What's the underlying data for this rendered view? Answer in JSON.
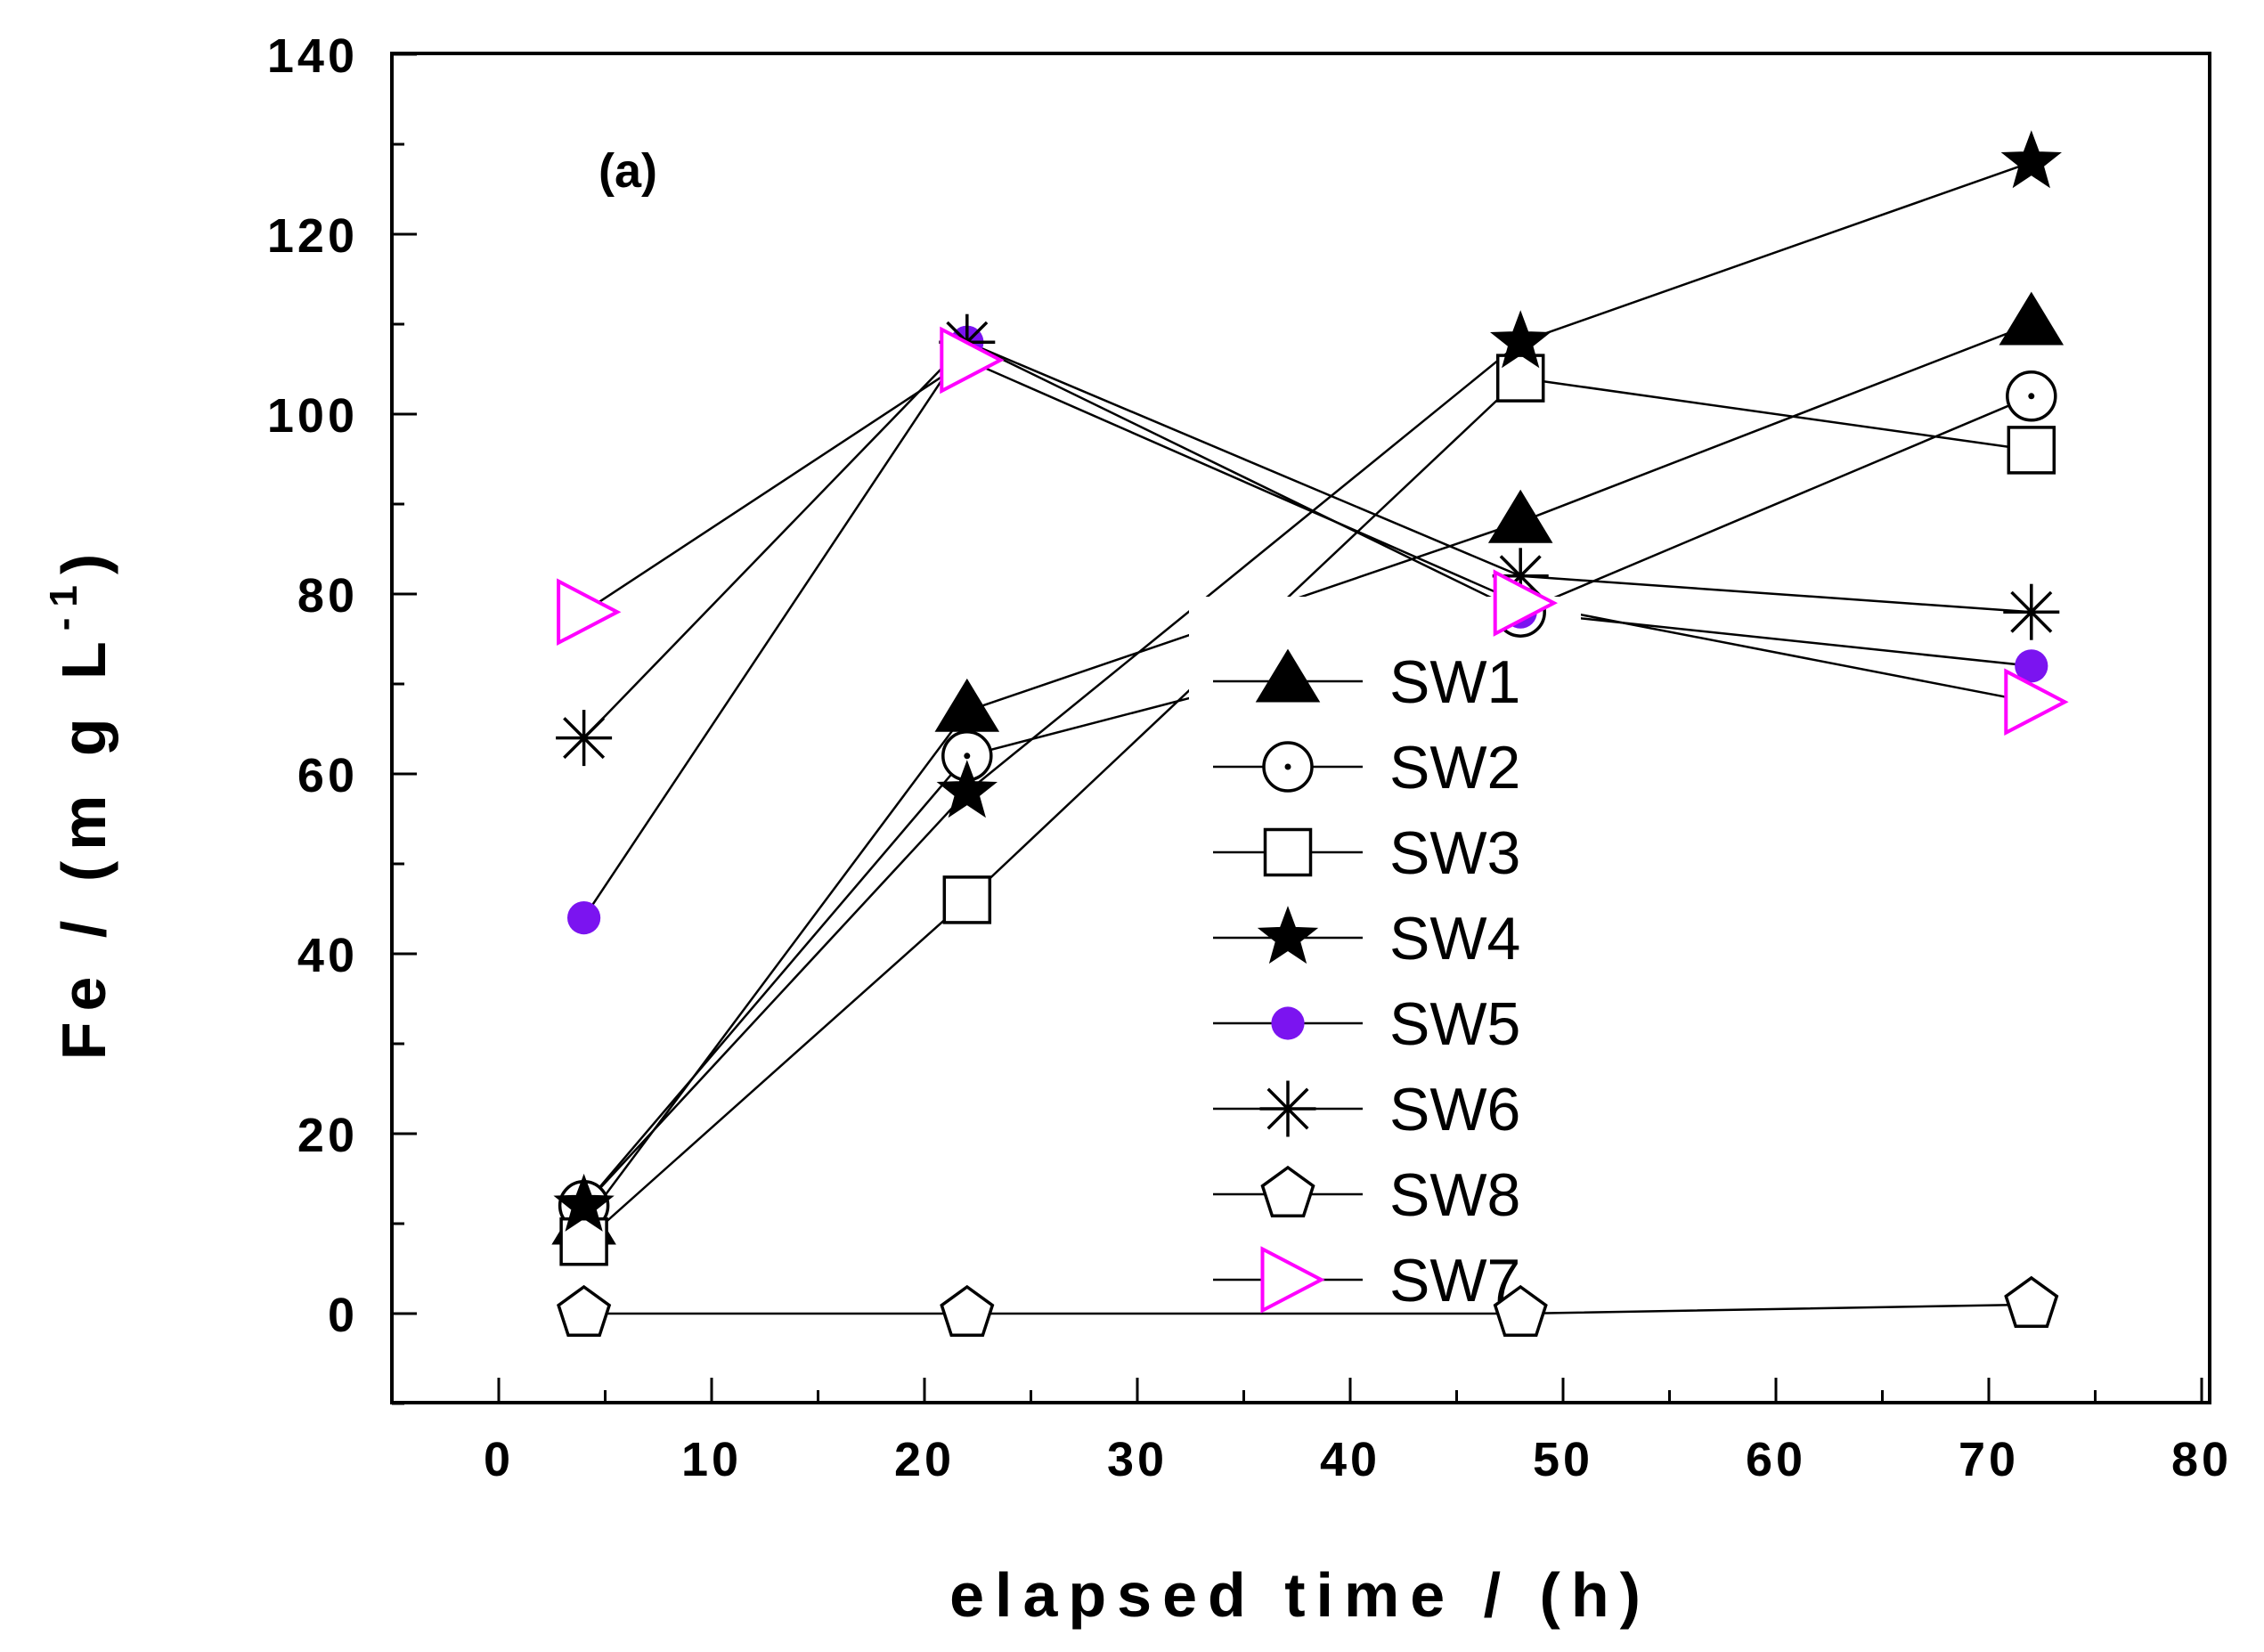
{
  "chart_data": {
    "type": "line",
    "title": "",
    "panel_label": "(a)",
    "xlabel": "elapsed time / (h)",
    "ylabel_main": "Fe / (m g L",
    "ylabel_sup": "-1",
    "ylabel_close": ")",
    "xlim": [
      -5,
      80
    ],
    "ylim": [
      -10,
      140
    ],
    "xticks": [
      0,
      10,
      20,
      30,
      40,
      50,
      60,
      70,
      80
    ],
    "yticks": [
      0,
      20,
      40,
      60,
      80,
      100,
      120,
      140
    ],
    "x": [
      4,
      22,
      48,
      72
    ],
    "legend_position": "center-right",
    "series": [
      {
        "name": "SW1",
        "marker": "triangle-filled",
        "color": "#000000",
        "values": [
          10,
          67,
          88,
          110
        ]
      },
      {
        "name": "SW2",
        "marker": "circle-dot",
        "color": "#000000",
        "values": [
          12,
          62,
          78,
          102
        ]
      },
      {
        "name": "SW3",
        "marker": "square-open",
        "color": "#000000",
        "values": [
          8,
          46,
          104,
          96
        ]
      },
      {
        "name": "SW4",
        "marker": "star-filled",
        "color": "#000000",
        "values": [
          12,
          58,
          108,
          128
        ]
      },
      {
        "name": "SW5",
        "marker": "circle-filled",
        "color": "#7b14f0",
        "values": [
          44,
          108,
          78,
          72
        ]
      },
      {
        "name": "SW6",
        "marker": "asterisk",
        "color": "#000000",
        "values": [
          64,
          108,
          82,
          78
        ]
      },
      {
        "name": "SW8",
        "marker": "pentagon-open",
        "color": "#000000",
        "values": [
          0,
          0,
          0,
          1
        ]
      },
      {
        "name": "SW7",
        "marker": "triangle-right-open",
        "color": "#ff00ff",
        "values": [
          78,
          106,
          79,
          68
        ]
      }
    ]
  }
}
